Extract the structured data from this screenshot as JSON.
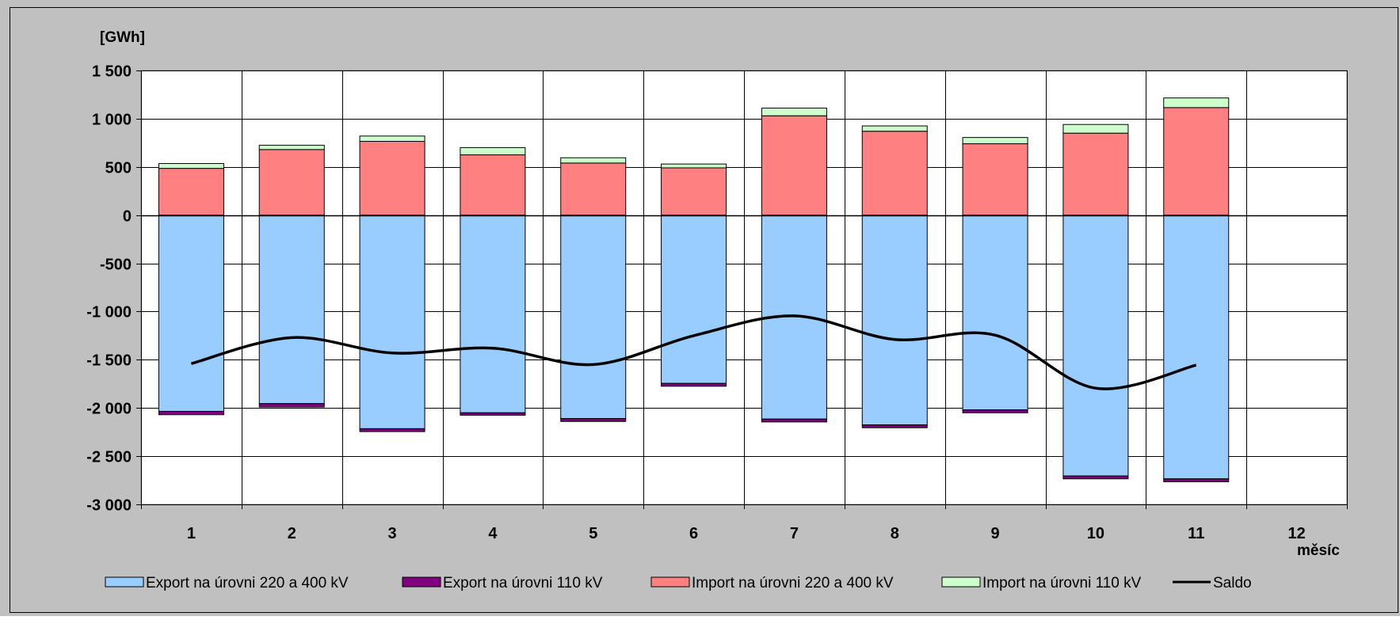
{
  "chart_data": {
    "type": "bar",
    "ylabel": "[GWh]",
    "xlabel": "měsíc",
    "categories": [
      "1",
      "2",
      "3",
      "4",
      "5",
      "6",
      "7",
      "8",
      "9",
      "10",
      "11",
      "12"
    ],
    "ylim": [
      -3000,
      1500
    ],
    "yticks": [
      1500,
      1000,
      500,
      0,
      -500,
      -1000,
      -1500,
      -2000,
      -2500,
      -3000
    ],
    "ytick_labels": [
      "1 500",
      "1 000",
      "500",
      "0",
      "-500",
      "-1 000",
      "-1 500",
      "-2 000",
      "-2 500",
      "-3 000"
    ],
    "grid": true,
    "legend_position": "bottom",
    "series": [
      {
        "name": "Export na úrovni 220 a 400 kV",
        "kind": "bar",
        "color": "#99CCFF",
        "values": [
          -2035,
          -1955,
          -2215,
          -2050,
          -2110,
          -1745,
          -2115,
          -2175,
          -2020,
          -2705,
          -2735,
          null
        ]
      },
      {
        "name": "Export na úrovni 110 kV",
        "kind": "bar",
        "color": "#800080",
        "values": [
          -35,
          -35,
          -30,
          -25,
          -30,
          -30,
          -30,
          -30,
          -30,
          -30,
          -30,
          null
        ]
      },
      {
        "name": "Import na úrovni 220 a 400 kV",
        "kind": "bar",
        "color": "#FF8080",
        "values": [
          485,
          680,
          765,
          625,
          540,
          490,
          1030,
          870,
          740,
          850,
          1115,
          null
        ]
      },
      {
        "name": "Import na úrovni 110 kV",
        "kind": "bar",
        "color": "#CCFFCC",
        "values": [
          50,
          45,
          55,
          75,
          55,
          40,
          80,
          55,
          65,
          90,
          100,
          null
        ]
      },
      {
        "name": "Saldo",
        "kind": "line",
        "color": "#000000",
        "values": [
          -1540,
          -1270,
          -1430,
          -1380,
          -1550,
          -1250,
          -1045,
          -1290,
          -1245,
          -1795,
          -1555,
          null
        ]
      }
    ]
  }
}
